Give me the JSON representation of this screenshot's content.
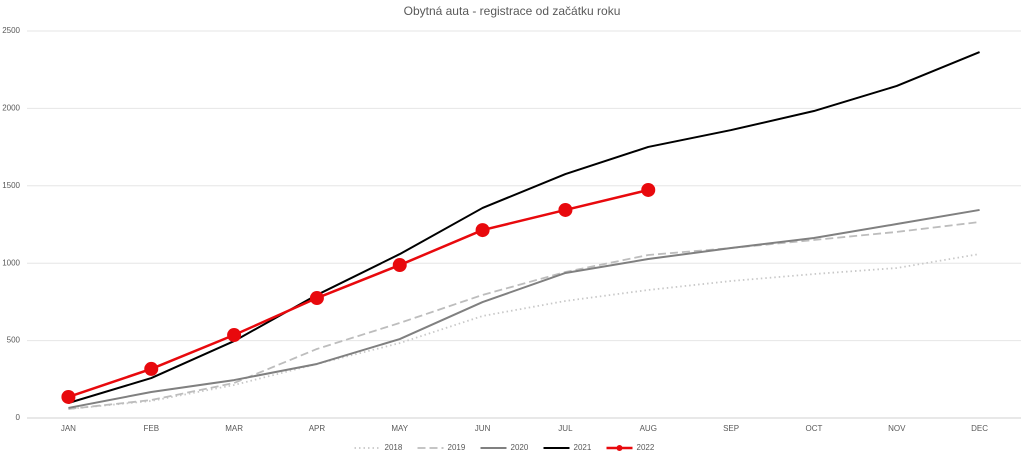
{
  "chart_data": {
    "type": "line",
    "title": "Obytná auta - registrace od začátku roku",
    "categories": [
      "JAN",
      "FEB",
      "MAR",
      "APR",
      "MAY",
      "JUN",
      "JUL",
      "AUG",
      "SEP",
      "OCT",
      "NOV",
      "DEC"
    ],
    "series": [
      {
        "name": "2018",
        "color": "#c8c8c8",
        "style": "dotted",
        "values": [
          58,
          110,
          213,
          349,
          484,
          659,
          756,
          827,
          885,
          930,
          969,
          1059
        ]
      },
      {
        "name": "2019",
        "color": "#bdbdbd",
        "style": "dashed",
        "values": [
          58,
          116,
          226,
          446,
          614,
          795,
          943,
          1053,
          1098,
          1150,
          1202,
          1266
        ]
      },
      {
        "name": "2020",
        "color": "#808080",
        "style": "solid",
        "values": [
          65,
          168,
          245,
          349,
          510,
          749,
          937,
          1027,
          1098,
          1163,
          1253,
          1344
        ]
      },
      {
        "name": "2021",
        "color": "#000000",
        "style": "solid",
        "values": [
          97,
          258,
          497,
          795,
          1059,
          1357,
          1576,
          1751,
          1860,
          1983,
          2145,
          2364
        ]
      },
      {
        "name": "2022",
        "color": "#e8090d",
        "style": "solid",
        "marker": true,
        "values": [
          136,
          317,
          536,
          775,
          988,
          1214,
          1344,
          1473,
          null,
          null,
          null,
          null
        ]
      }
    ],
    "ylim": [
      0,
      2500
    ],
    "yticks": [
      0,
      500,
      1000,
      1500,
      2000,
      2500
    ],
    "grid": true,
    "legend": "bottom"
  }
}
